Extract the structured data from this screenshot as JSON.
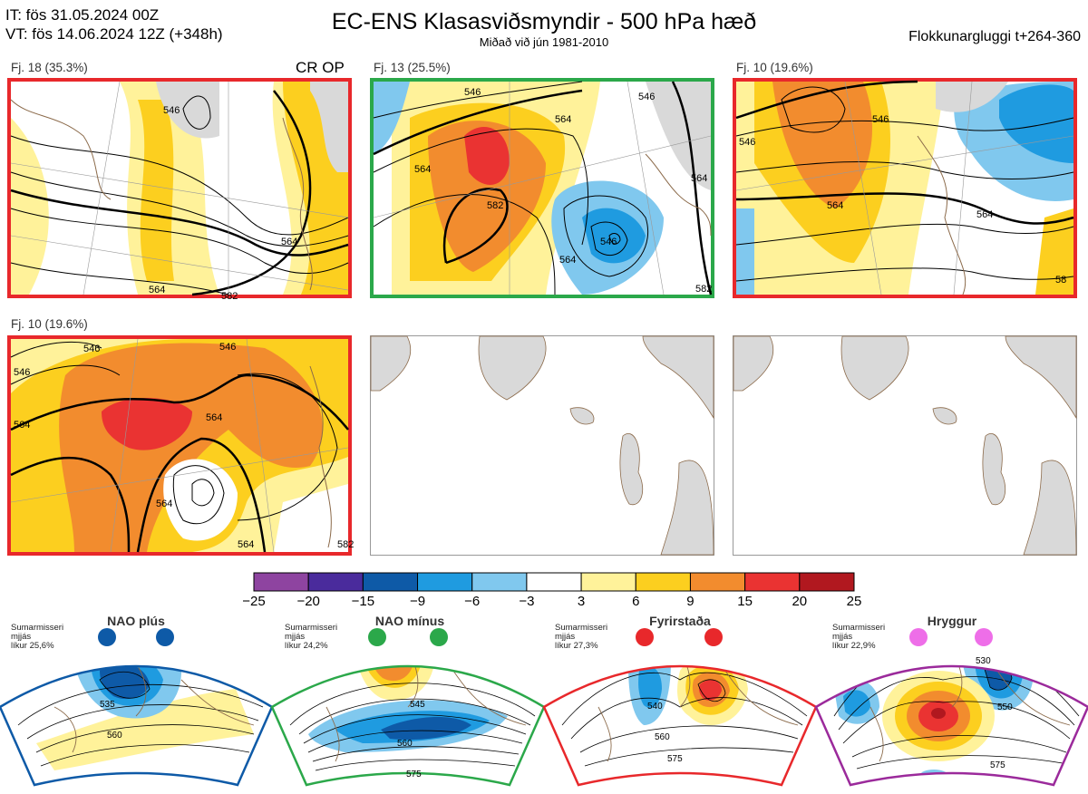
{
  "header": {
    "it_line": "IT: fös 31.05.2024 00Z",
    "vt_line": "VT: fös 14.06.2024 12Z  (+348h)",
    "title": "EC-ENS Klasasviðsmyndir - 500 hPa hæð",
    "subtitle": "Miðað við jún 1981-2010",
    "window": "Flokkunargluggi t+264-360"
  },
  "panels": [
    {
      "label": "Fj. 18 (35.3%)",
      "extra": "CR OP",
      "border": "#e8282b",
      "contours": [
        "546",
        "564",
        "564",
        "582"
      ]
    },
    {
      "label": "Fj. 13 (25.5%)",
      "extra": "",
      "border": "#2ba84a",
      "contours": [
        "546",
        "546",
        "564",
        "564",
        "564",
        "582",
        "546",
        "564",
        "582"
      ]
    },
    {
      "label": "Fj. 10 (19.6%)",
      "extra": "",
      "border": "#e8282b",
      "contours": [
        "546",
        "546",
        "564",
        "564",
        "58"
      ]
    },
    {
      "label": "Fj. 10 (19.6%)",
      "extra": "",
      "border": "#e8282b",
      "contours": [
        "546",
        "546",
        "546",
        "564",
        "564",
        "564",
        "564",
        "582"
      ]
    }
  ],
  "colorbar": {
    "colors": [
      "#8e44a0",
      "#4a2b9c",
      "#0e5aa7",
      "#1f9be0",
      "#80c8ee",
      "#ffffff",
      "#fff29a",
      "#fccf1f",
      "#f28c2e",
      "#ea3332",
      "#b1181f"
    ],
    "ticks": [
      "−25",
      "−20",
      "−15",
      "−9",
      "−6",
      "−3",
      "3",
      "6",
      "9",
      "15",
      "20",
      "25"
    ]
  },
  "regimes": [
    {
      "name": "NAO plús",
      "note": [
        "Sumarmisseri",
        "mjjás",
        "líkur 25,6%"
      ],
      "color": "#0e5aa7",
      "contours": [
        "535",
        "560"
      ]
    },
    {
      "name": "NAO mínus",
      "note": [
        "Sumarmisseri",
        "mjjás",
        "líkur 24,2%"
      ],
      "color": "#2ba84a",
      "contours": [
        "545",
        "560",
        "575"
      ]
    },
    {
      "name": "Fyrirstaða",
      "note": [
        "Sumarmisseri",
        "mjjás",
        "líkur 27,3%"
      ],
      "color": "#e8282b",
      "contours": [
        "540",
        "560",
        "575"
      ]
    },
    {
      "name": "Hryggur",
      "note": [
        "Sumarmisseri",
        "mjjás",
        "líkur 22,9%"
      ],
      "color": "#9b2a9b",
      "contours": [
        "530",
        "550",
        "575"
      ]
    }
  ]
}
